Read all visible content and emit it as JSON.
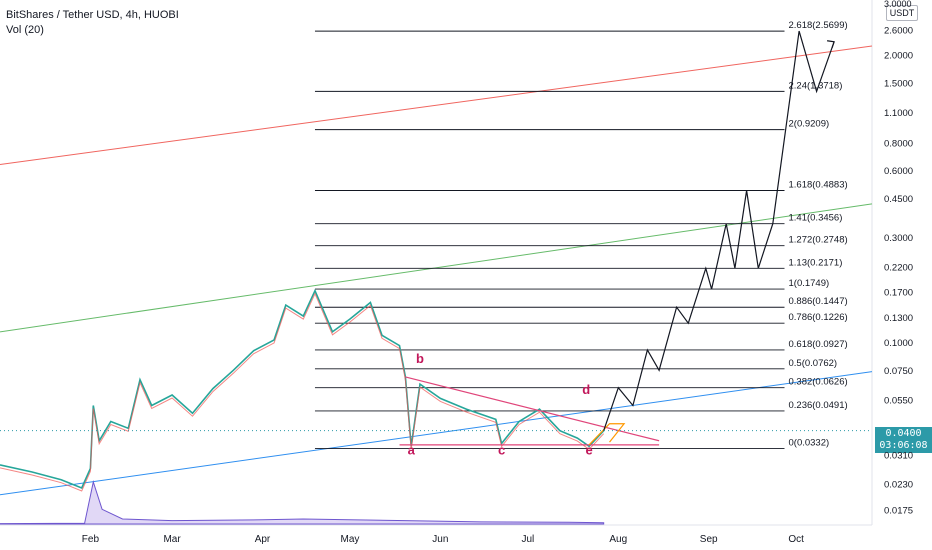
{
  "header": {
    "ticker": "BitShares / Tether USD, 4h, HUOBI",
    "volume": "Vol (20)"
  },
  "axis": {
    "currency": "USDT",
    "last_price": "0.0400",
    "countdown": "03:06:08"
  },
  "colors": {
    "red_channel": "#f0655f",
    "green_channel": "#66bb6a",
    "blue_channel": "#2f8ff0",
    "pink_triangle": "#e0457a",
    "orange_wedge": "#ff9800",
    "fib_line": "#131722",
    "last_price": "#2c9aa8",
    "volume": "#6e56cf"
  },
  "chart_data": {
    "type": "line",
    "scale": "log",
    "price_ticks": [
      {
        "label": "3.0000",
        "value": 3.0
      },
      {
        "label": "2.6000",
        "value": 2.6
      },
      {
        "label": "2.0000",
        "value": 2.0
      },
      {
        "label": "1.5000",
        "value": 1.5
      },
      {
        "label": "1.1000",
        "value": 1.1
      },
      {
        "label": "0.8000",
        "value": 0.8
      },
      {
        "label": "0.6000",
        "value": 0.6
      },
      {
        "label": "0.4500",
        "value": 0.45
      },
      {
        "label": "0.3000",
        "value": 0.3
      },
      {
        "label": "0.2200",
        "value": 0.22
      },
      {
        "label": "0.1700",
        "value": 0.17
      },
      {
        "label": "0.1300",
        "value": 0.13
      },
      {
        "label": "0.1000",
        "value": 0.1
      },
      {
        "label": "0.0750",
        "value": 0.075
      },
      {
        "label": "0.0550",
        "value": 0.055
      },
      {
        "label": "0.0310",
        "value": 0.031
      },
      {
        "label": "0.0230",
        "value": 0.023
      },
      {
        "label": "0.0175",
        "value": 0.0175
      }
    ],
    "time_ticks": [
      "Feb",
      "Mar",
      "Apr",
      "May",
      "Jun",
      "Jul",
      "Aug",
      "Sep",
      "Oct"
    ],
    "time_domain": [
      "2021-01-01",
      "2021-10-27"
    ],
    "month_starts": [
      "2021-02-01",
      "2021-03-01",
      "2021-04-01",
      "2021-05-01",
      "2021-06-01",
      "2021-07-01",
      "2021-08-01",
      "2021-09-01",
      "2021-10-01"
    ],
    "fib_levels": [
      {
        "label": "2.618(2.5699)",
        "value": 2.5699
      },
      {
        "label": "2.24(1.3718)",
        "value": 1.3718
      },
      {
        "label": "2(0.9209)",
        "value": 0.9209
      },
      {
        "label": "1.618(0.4883)",
        "value": 0.4883
      },
      {
        "label": "1.41(0.3456)",
        "value": 0.3456
      },
      {
        "label": "1.272(0.2748)",
        "value": 0.2748
      },
      {
        "label": "1.13(0.2171)",
        "value": 0.2171
      },
      {
        "label": "1(0.1749)",
        "value": 0.1749
      },
      {
        "label": "0.886(0.1447)",
        "value": 0.1447
      },
      {
        "label": "0.786(0.1226)",
        "value": 0.1226
      },
      {
        "label": "0.618(0.0927)",
        "value": 0.0927
      },
      {
        "label": "0.5(0.0762)",
        "value": 0.0762
      },
      {
        "label": "0.382(0.0626)",
        "value": 0.0626
      },
      {
        "label": "0.236(0.0491)",
        "value": 0.0491
      },
      {
        "label": "0(0.0332)",
        "value": 0.0332
      }
    ],
    "wave_labels": [
      {
        "label": "a",
        "date": "2021-05-22",
        "price": 0.0312
      },
      {
        "label": "b",
        "date": "2021-05-25",
        "price": 0.081
      },
      {
        "label": "c",
        "date": "2021-06-22",
        "price": 0.0312
      },
      {
        "label": "d",
        "date": "2021-07-21",
        "price": 0.0585
      },
      {
        "label": "e",
        "date": "2021-07-22",
        "price": 0.0312
      }
    ],
    "price_path": [
      [
        "2021-01-01",
        0.028
      ],
      [
        "2021-01-12",
        0.026
      ],
      [
        "2021-01-22",
        0.024
      ],
      [
        "2021-01-29",
        0.022
      ],
      [
        "2021-02-01",
        0.027
      ],
      [
        "2021-02-02",
        0.052
      ],
      [
        "2021-02-04",
        0.036
      ],
      [
        "2021-02-08",
        0.044
      ],
      [
        "2021-02-14",
        0.041
      ],
      [
        "2021-02-18",
        0.068
      ],
      [
        "2021-02-22",
        0.052
      ],
      [
        "2021-03-01",
        0.058
      ],
      [
        "2021-03-08",
        0.048
      ],
      [
        "2021-03-15",
        0.062
      ],
      [
        "2021-03-22",
        0.075
      ],
      [
        "2021-03-29",
        0.092
      ],
      [
        "2021-04-05",
        0.103
      ],
      [
        "2021-04-09",
        0.148
      ],
      [
        "2021-04-15",
        0.132
      ],
      [
        "2021-04-19",
        0.172
      ],
      [
        "2021-04-25",
        0.112
      ],
      [
        "2021-05-01",
        0.128
      ],
      [
        "2021-05-08",
        0.152
      ],
      [
        "2021-05-12",
        0.108
      ],
      [
        "2021-05-18",
        0.097
      ],
      [
        "2021-05-20",
        0.07
      ],
      [
        "2021-05-22",
        0.034
      ],
      [
        "2021-05-25",
        0.065
      ],
      [
        "2021-06-01",
        0.056
      ],
      [
        "2021-06-10",
        0.05
      ],
      [
        "2021-06-20",
        0.045
      ],
      [
        "2021-06-22",
        0.035
      ],
      [
        "2021-06-28",
        0.044
      ],
      [
        "2021-07-05",
        0.05
      ],
      [
        "2021-07-12",
        0.04
      ],
      [
        "2021-07-18",
        0.037
      ],
      [
        "2021-07-22",
        0.034
      ],
      [
        "2021-07-27",
        0.04
      ]
    ],
    "projection": [
      [
        "2021-07-27",
        0.04
      ],
      [
        "2021-08-01",
        0.0626
      ],
      [
        "2021-08-06",
        0.052
      ],
      [
        "2021-08-11",
        0.0927
      ],
      [
        "2021-08-15",
        0.075
      ],
      [
        "2021-08-21",
        0.1447
      ],
      [
        "2021-08-25",
        0.1226
      ],
      [
        "2021-08-31",
        0.2171
      ],
      [
        "2021-09-02",
        0.1749
      ],
      [
        "2021-09-07",
        0.3456
      ],
      [
        "2021-09-10",
        0.2171
      ],
      [
        "2021-09-14",
        0.4883
      ],
      [
        "2021-09-18",
        0.2171
      ],
      [
        "2021-09-23",
        0.3456
      ],
      [
        "2021-10-02",
        2.5699
      ],
      [
        "2021-10-08",
        1.3718
      ],
      [
        "2021-10-14",
        2.3
      ]
    ],
    "volume_path": [
      [
        "2021-01-01",
        0.01
      ],
      [
        "2021-01-20",
        0.015
      ],
      [
        "2021-01-30",
        0.02
      ],
      [
        "2021-02-02",
        1.0
      ],
      [
        "2021-02-05",
        0.35
      ],
      [
        "2021-02-12",
        0.12
      ],
      [
        "2021-03-01",
        0.08
      ],
      [
        "2021-04-01",
        0.1
      ],
      [
        "2021-04-15",
        0.12
      ],
      [
        "2021-05-01",
        0.1
      ],
      [
        "2021-05-20",
        0.08
      ],
      [
        "2021-06-15",
        0.05
      ],
      [
        "2021-07-15",
        0.04
      ],
      [
        "2021-07-27",
        0.03
      ]
    ],
    "trend_lines": [
      {
        "name": "red-channel",
        "points": [
          [
            "2021-01-01",
            0.64
          ],
          [
            "2021-10-27",
            2.2
          ]
        ]
      },
      {
        "name": "green-channel",
        "points": [
          [
            "2021-01-01",
            0.112
          ],
          [
            "2021-10-27",
            0.425
          ]
        ]
      },
      {
        "name": "blue-channel",
        "points": [
          [
            "2021-01-01",
            0.0205
          ],
          [
            "2021-10-27",
            0.074
          ]
        ]
      }
    ],
    "triangle": [
      [
        "2021-05-20",
        0.07
      ],
      [
        "2021-05-18",
        0.0345
      ],
      [
        "2021-08-15",
        0.0345
      ],
      [
        "2021-08-15",
        0.036
      ]
    ],
    "legend": "none",
    "grid": false
  }
}
